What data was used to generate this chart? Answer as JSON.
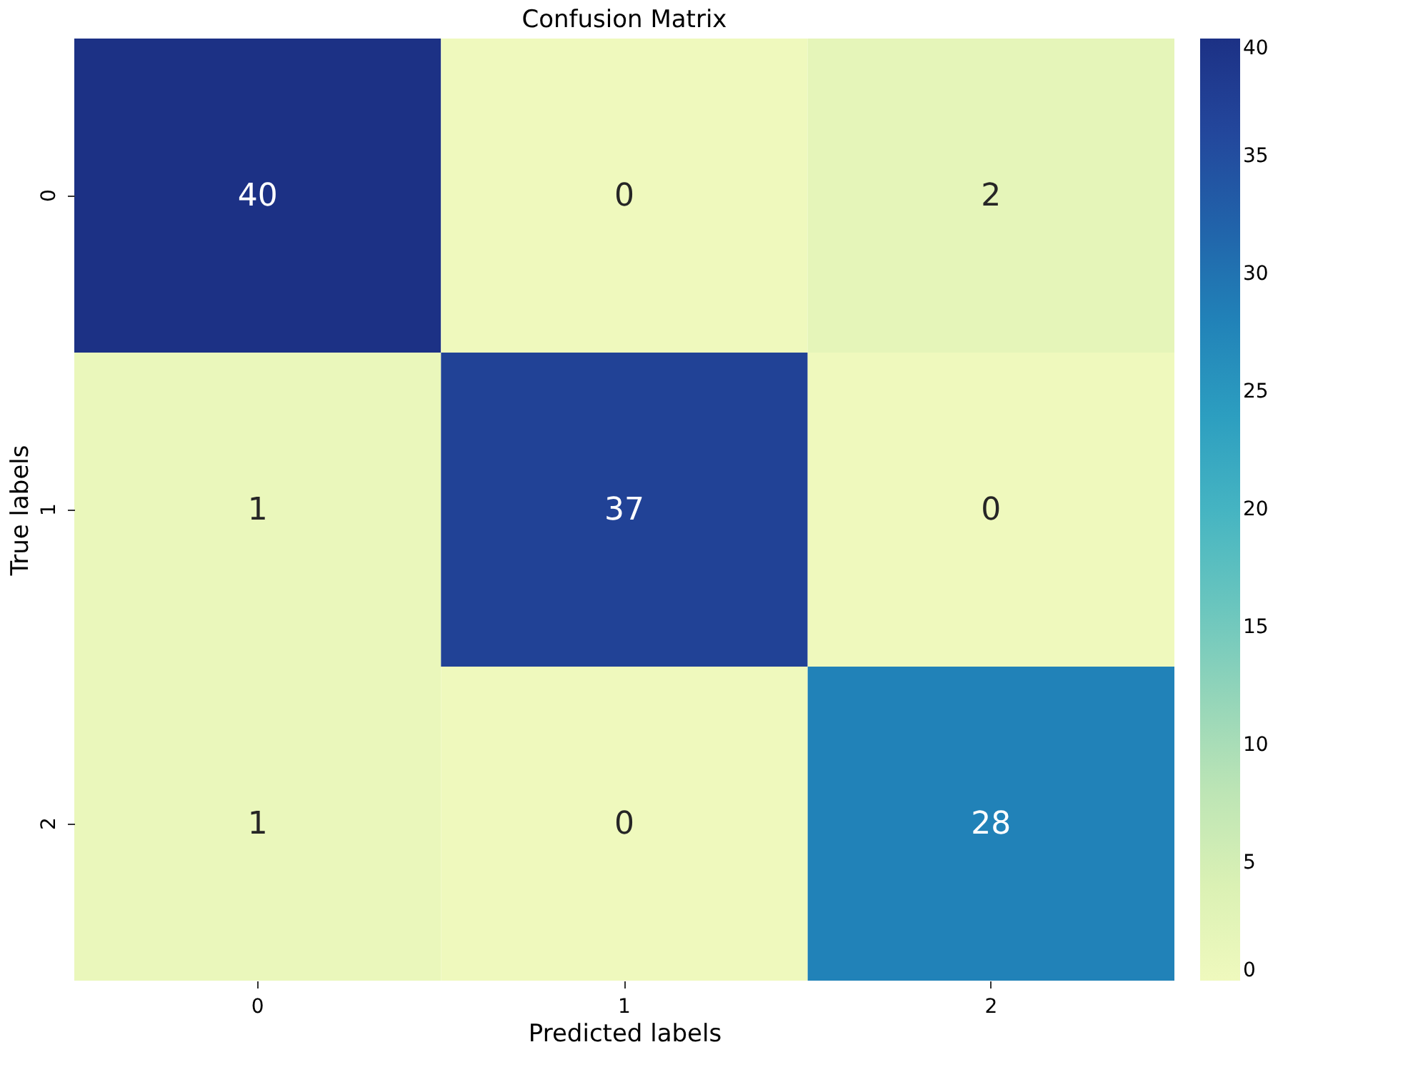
{
  "chart_data": {
    "type": "heatmap",
    "title": "Confusion Matrix",
    "xlabel": "Predicted labels",
    "ylabel": "True labels",
    "categories": [
      "0",
      "1",
      "2"
    ],
    "y_categories": [
      "0",
      "1",
      "2"
    ],
    "cells": [
      [
        40,
        0,
        2
      ],
      [
        1,
        37,
        0
      ],
      [
        1,
        0,
        28
      ]
    ],
    "clim": [
      0,
      40
    ],
    "cticks": [
      0,
      5,
      10,
      15,
      20,
      25,
      30,
      35,
      40
    ],
    "data_labels": true
  }
}
